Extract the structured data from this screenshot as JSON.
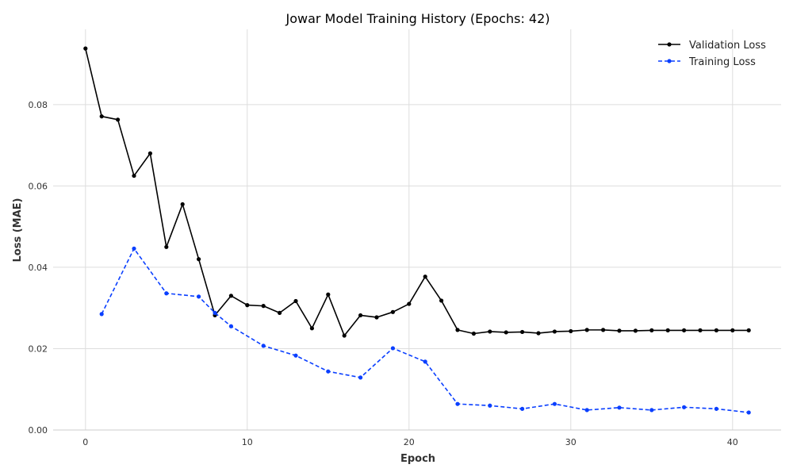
{
  "chart_data": {
    "type": "line",
    "title": "Jowar Model Training History (Epochs: 42)",
    "xlabel": "Epoch",
    "ylabel": "Loss (MAE)",
    "xlim": [
      -2,
      43
    ],
    "ylim": [
      0,
      0.0985
    ],
    "xticks": [
      0,
      10,
      20,
      30,
      40
    ],
    "xtick_labels": [
      "0",
      "10",
      "20",
      "30",
      "40"
    ],
    "yticks": [
      0.0,
      0.02,
      0.04,
      0.06,
      0.08
    ],
    "ytick_labels": [
      "0.00",
      "0.02",
      "0.04",
      "0.06",
      "0.08"
    ],
    "grid": true,
    "legend_position": "top-right",
    "series": [
      {
        "name": "Validation Loss",
        "color": "#000000",
        "linestyle": "solid",
        "x": [
          0,
          1,
          2,
          3,
          4,
          5,
          6,
          7,
          8,
          9,
          10,
          11,
          12,
          13,
          14,
          15,
          16,
          17,
          18,
          19,
          20,
          21,
          22,
          23,
          24,
          25,
          26,
          27,
          28,
          29,
          30,
          31,
          32,
          33,
          34,
          35,
          36,
          37,
          38,
          39,
          40,
          41
        ],
        "values": [
          0.0938,
          0.0771,
          0.0763,
          0.0625,
          0.068,
          0.045,
          0.0555,
          0.042,
          0.0282,
          0.033,
          0.0307,
          0.0305,
          0.0288,
          0.0317,
          0.025,
          0.0333,
          0.0232,
          0.0282,
          0.0277,
          0.029,
          0.031,
          0.0377,
          0.0318,
          0.0246,
          0.0237,
          0.0242,
          0.024,
          0.0241,
          0.0238,
          0.0242,
          0.0243,
          0.0246,
          0.0246,
          0.0244,
          0.0244,
          0.0245,
          0.0245,
          0.0245,
          0.0245,
          0.0245,
          0.0245,
          0.0245
        ]
      },
      {
        "name": "Training Loss",
        "color": "#0a3fff",
        "linestyle": "dashed",
        "x": [
          1,
          3,
          5,
          7,
          8,
          9,
          11,
          13,
          15,
          17,
          19,
          21,
          23,
          25,
          27,
          29,
          31,
          33,
          35,
          37,
          39,
          41
        ],
        "values": [
          0.0285,
          0.0446,
          0.0336,
          0.0328,
          0.0288,
          0.0255,
          0.0207,
          0.0183,
          0.0144,
          0.0129,
          0.0201,
          0.0168,
          0.0064,
          0.006,
          0.0052,
          0.0064,
          0.0049,
          0.0055,
          0.0049,
          0.0056,
          0.0052,
          0.0043
        ]
      }
    ]
  }
}
